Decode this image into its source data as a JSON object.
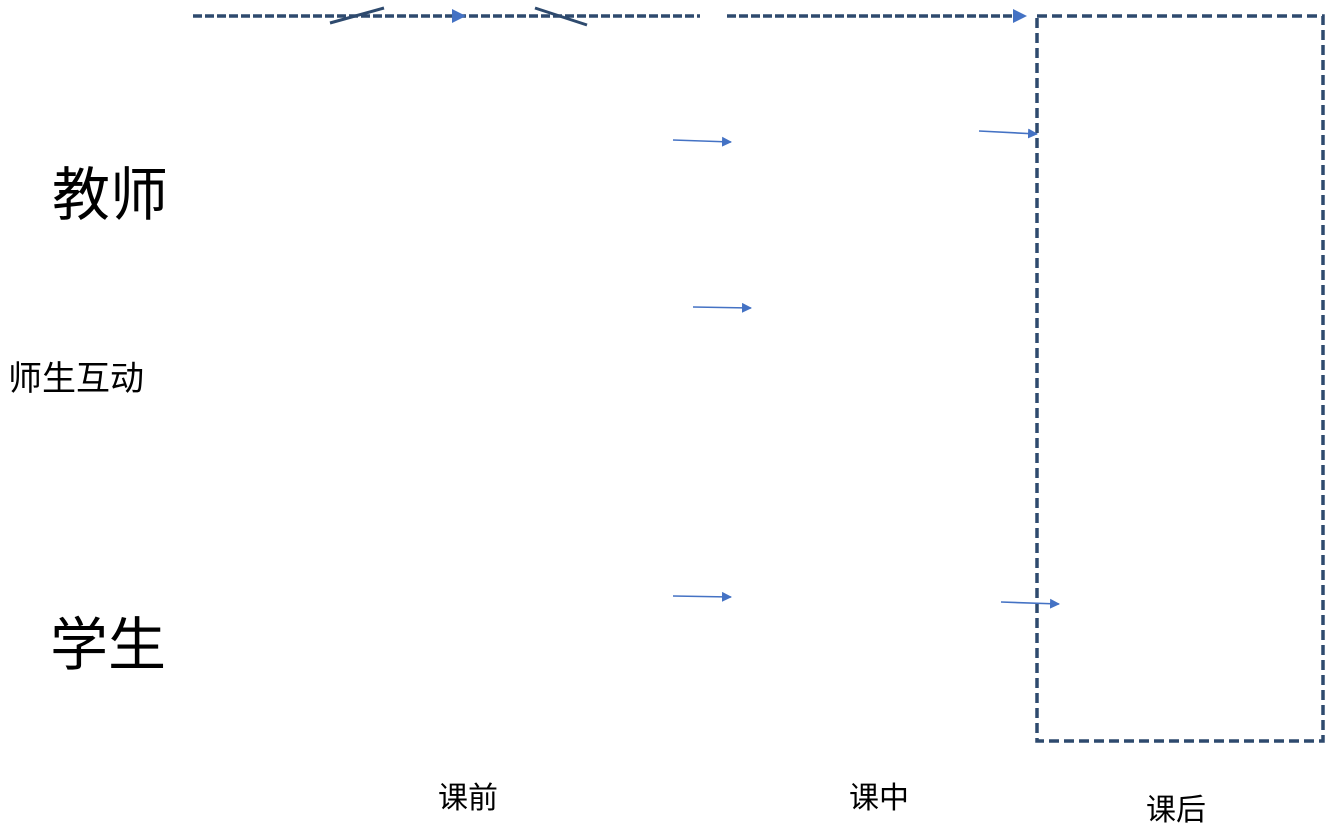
{
  "rows": {
    "teacher": "教师",
    "interaction": "师生互动",
    "student": "学生"
  },
  "phases": {
    "before": "课前",
    "during": "课中",
    "after": "课后"
  },
  "colors": {
    "arrow": "#4472C4",
    "dashed_line": "#2E4A6E",
    "text": "#000000",
    "background": "#FFFFFF"
  }
}
